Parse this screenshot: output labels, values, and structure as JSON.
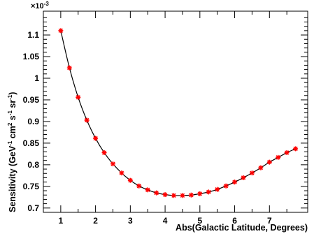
{
  "chart_data": {
    "type": "scatter",
    "title": "",
    "xlabel": "Abs(Galactic Latitude, Degrees)",
    "ylabel_parts": {
      "prefix": "Sensitivity (GeV",
      "sup1": "-1",
      "mid1": " cm",
      "sup2": "2",
      "mid2": " s",
      "sup3": "-1",
      "mid3": " sr",
      "sup4": "-1",
      "suffix": ")"
    },
    "y_multiplier": {
      "base": "×10",
      "exponent": "-3"
    },
    "xlim": [
      0.5,
      8.1
    ],
    "ylim": [
      0.69,
      1.155
    ],
    "x_ticks": [
      1,
      2,
      3,
      4,
      5,
      6,
      7
    ],
    "y_ticks": [
      0.7,
      0.75,
      0.8,
      0.85,
      0.9,
      0.95,
      1.0,
      1.05,
      1.1
    ],
    "y_tick_labels": [
      "0.7",
      "0.75",
      "0.8",
      "0.85",
      "0.9",
      "0.95",
      "1",
      "1.05",
      "1.1"
    ],
    "marker_color": "#ff0000",
    "line_color": "#000000",
    "series": [
      {
        "x": [
          1.0,
          1.25,
          1.5,
          1.75,
          2.0,
          2.25,
          2.5,
          2.75,
          3.0,
          3.25,
          3.5,
          3.75,
          4.0,
          4.25,
          4.5,
          4.75,
          5.0,
          5.25,
          5.5,
          5.75,
          6.0,
          6.25,
          6.5,
          6.75,
          7.0,
          7.25,
          7.5,
          7.75
        ],
        "values": [
          1.11,
          1.024,
          0.956,
          0.903,
          0.861,
          0.828,
          0.802,
          0.781,
          0.764,
          0.751,
          0.742,
          0.735,
          0.731,
          0.729,
          0.729,
          0.73,
          0.733,
          0.737,
          0.743,
          0.751,
          0.76,
          0.77,
          0.781,
          0.793,
          0.806,
          0.817,
          0.828,
          0.837
        ]
      }
    ]
  }
}
